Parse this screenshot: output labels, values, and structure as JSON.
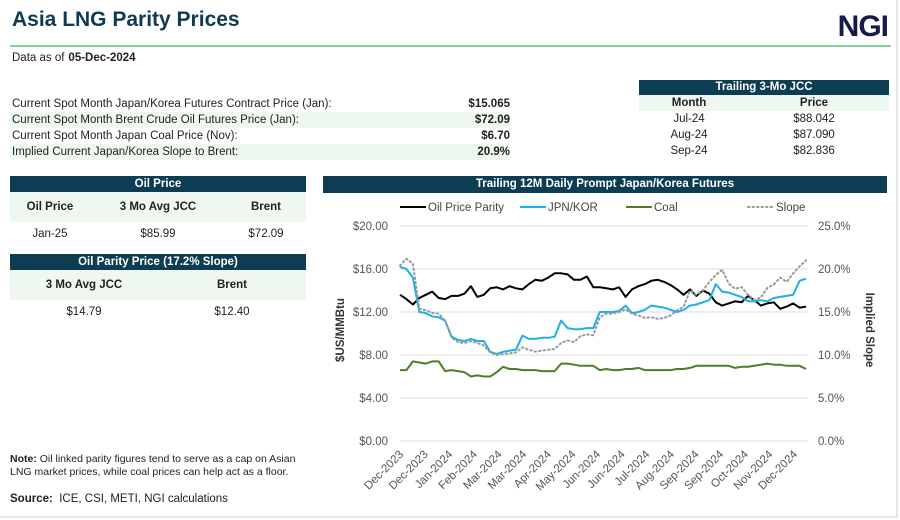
{
  "header": {
    "title": "Asia LNG Parity Prices",
    "logo": "NGI",
    "asof_label": "Data as of",
    "asof_date": "05-Dec-2024"
  },
  "summary": [
    {
      "label": "Current Spot Month Japan/Korea Futures Contract Price (Jan):",
      "value": "$15.065"
    },
    {
      "label": "Current Spot Month Brent Crude Oil Futures Price (Jan):",
      "value": "$72.09"
    },
    {
      "label": "Current Spot Month Japan Coal Price (Nov):",
      "value": "$6.70"
    },
    {
      "label": "Implied Current Japan/Korea Slope to Brent:",
      "value": "20.9%"
    }
  ],
  "jcc_table": {
    "title": "Trailing 3-Mo JCC",
    "columns": [
      "Month",
      "Price"
    ],
    "rows": [
      [
        "Jul-24",
        "$88.042"
      ],
      [
        "Aug-24",
        "$87.090"
      ],
      [
        "Sep-24",
        "$82.836"
      ]
    ]
  },
  "oil_price": {
    "title": "Oil Price",
    "columns": [
      "Oil Price",
      "3 Mo Avg JCC",
      "Brent"
    ],
    "row": [
      "Jan-25",
      "$85.99",
      "$72.09"
    ]
  },
  "oil_parity": {
    "title": "Oil Parity Price (17.2% Slope)",
    "columns": [
      "3 Mo Avg JCC",
      "Brent"
    ],
    "row": [
      "$14.79",
      "$12.40"
    ]
  },
  "note": {
    "label": "Note:",
    "text": "Oil linked parity figures tend to serve as a cap on Asian LNG market prices, while coal prices can help act as a floor."
  },
  "source": {
    "label": "Source:",
    "text": "ICE, CSI, METI, NGI calculations"
  },
  "chart_data": {
    "type": "line",
    "title": "Trailing 12M Daily Prompt Japan/Korea Futures",
    "ylabel": "$US/MMBtu",
    "y2label": "Implied  Slope",
    "ylim": [
      0,
      20
    ],
    "y2lim": [
      0,
      25
    ],
    "yticks": [
      "$0.00",
      "$4.00",
      "$8.00",
      "$12.00",
      "$16.00",
      "$20.00"
    ],
    "y2ticks": [
      "0.0%",
      "5.0%",
      "10.0%",
      "15.0%",
      "20.0%",
      "25.0%"
    ],
    "xticks": [
      "Dec-2023",
      "Dec-2023",
      "Jan-2024",
      "Feb-2024",
      "Mar-2024",
      "Mar-2024",
      "Apr-2024",
      "May-2024",
      "Jun-2024",
      "Jun-2024",
      "Jul-2024",
      "Aug-2024",
      "Sep-2024",
      "Sep-2024",
      "Oct-2024",
      "Nov-2024",
      "Dec-2024"
    ],
    "grid": true,
    "legend_position": "top",
    "colors": {
      "Oil Price Parity": "#000000",
      "JPN/KOR": "#1fb0e6",
      "Coal": "#4e7e2a",
      "Slope": "#999999"
    },
    "series": [
      {
        "name": "Oil Price Parity",
        "axis": "left",
        "style": "solid",
        "values": [
          13.6,
          13.2,
          12.7,
          13.3,
          13.6,
          13.9,
          13.3,
          13.2,
          13.5,
          13.5,
          13.7,
          14.4,
          13.4,
          13.6,
          14.2,
          14.3,
          14.1,
          14.4,
          14.2,
          14.1,
          14.6,
          15.0,
          14.9,
          15.2,
          15.6,
          15.6,
          15.5,
          15.0,
          15.0,
          15.3,
          14.3,
          14.3,
          14.2,
          14.1,
          14.3,
          13.4,
          14.1,
          14.4,
          14.6,
          14.9,
          15.0,
          14.8,
          14.5,
          14.1,
          13.6,
          14.1,
          13.5,
          14.0,
          13.7,
          12.9,
          12.6,
          12.8,
          13.0,
          12.9,
          13.5,
          13.1,
          12.6,
          12.8,
          12.9,
          12.3,
          12.5,
          12.8,
          12.4,
          12.5
        ]
      },
      {
        "name": "JPN/KOR",
        "axis": "left",
        "style": "solid",
        "values": [
          16.2,
          16.0,
          15.2,
          12.0,
          11.9,
          11.6,
          11.5,
          11.2,
          9.7,
          9.4,
          9.3,
          9.5,
          9.3,
          9.3,
          8.3,
          8.1,
          8.3,
          8.4,
          8.5,
          9.8,
          9.5,
          9.5,
          9.6,
          9.6,
          9.7,
          11.2,
          10.5,
          10.4,
          10.4,
          10.5,
          10.5,
          12.0,
          12.0,
          12.0,
          12.1,
          12.6,
          11.9,
          12.0,
          12.2,
          12.6,
          12.5,
          12.4,
          12.2,
          12.0,
          12.2,
          12.6,
          12.7,
          12.9,
          13.1,
          14.6,
          13.9,
          13.8,
          13.6,
          13.4,
          13.0,
          13.0,
          13.1,
          13.0,
          13.3,
          13.4,
          13.5,
          13.6,
          14.9,
          15.1
        ]
      },
      {
        "name": "Coal",
        "axis": "left",
        "style": "solid",
        "values": [
          6.6,
          6.6,
          7.4,
          7.3,
          7.2,
          7.4,
          7.4,
          6.5,
          6.6,
          6.5,
          6.4,
          6.0,
          6.1,
          6.0,
          6.0,
          6.4,
          6.9,
          6.7,
          6.7,
          6.6,
          6.6,
          6.6,
          6.5,
          6.5,
          6.5,
          7.2,
          7.2,
          7.1,
          7.0,
          7.0,
          7.0,
          6.6,
          6.7,
          6.6,
          6.6,
          6.7,
          6.7,
          6.8,
          6.6,
          6.6,
          6.6,
          6.6,
          6.6,
          6.7,
          6.7,
          6.8,
          7.0,
          7.0,
          7.0,
          7.0,
          7.0,
          7.0,
          6.8,
          6.9,
          6.9,
          7.0,
          7.1,
          7.2,
          7.1,
          7.1,
          7.0,
          7.0,
          7.0,
          6.7
        ]
      },
      {
        "name": "Slope",
        "axis": "right",
        "style": "dotted",
        "values": [
          20.4,
          21.2,
          20.6,
          15.4,
          15.2,
          14.9,
          14.8,
          14.0,
          12.0,
          11.5,
          11.4,
          11.6,
          11.4,
          11.1,
          10.3,
          10.0,
          10.1,
          10.2,
          10.3,
          10.9,
          10.6,
          10.4,
          10.5,
          10.6,
          10.7,
          11.4,
          11.7,
          11.5,
          12.2,
          12.4,
          12.3,
          14.4,
          14.8,
          14.8,
          15.0,
          15.3,
          14.8,
          14.6,
          14.3,
          14.4,
          14.2,
          14.3,
          14.6,
          15.2,
          15.6,
          17.5,
          17.0,
          17.5,
          18.5,
          19.3,
          19.9,
          18.3,
          17.7,
          17.9,
          17.0,
          16.4,
          16.7,
          17.8,
          18.2,
          19.0,
          18.5,
          19.5,
          20.3,
          21.0
        ]
      }
    ]
  }
}
